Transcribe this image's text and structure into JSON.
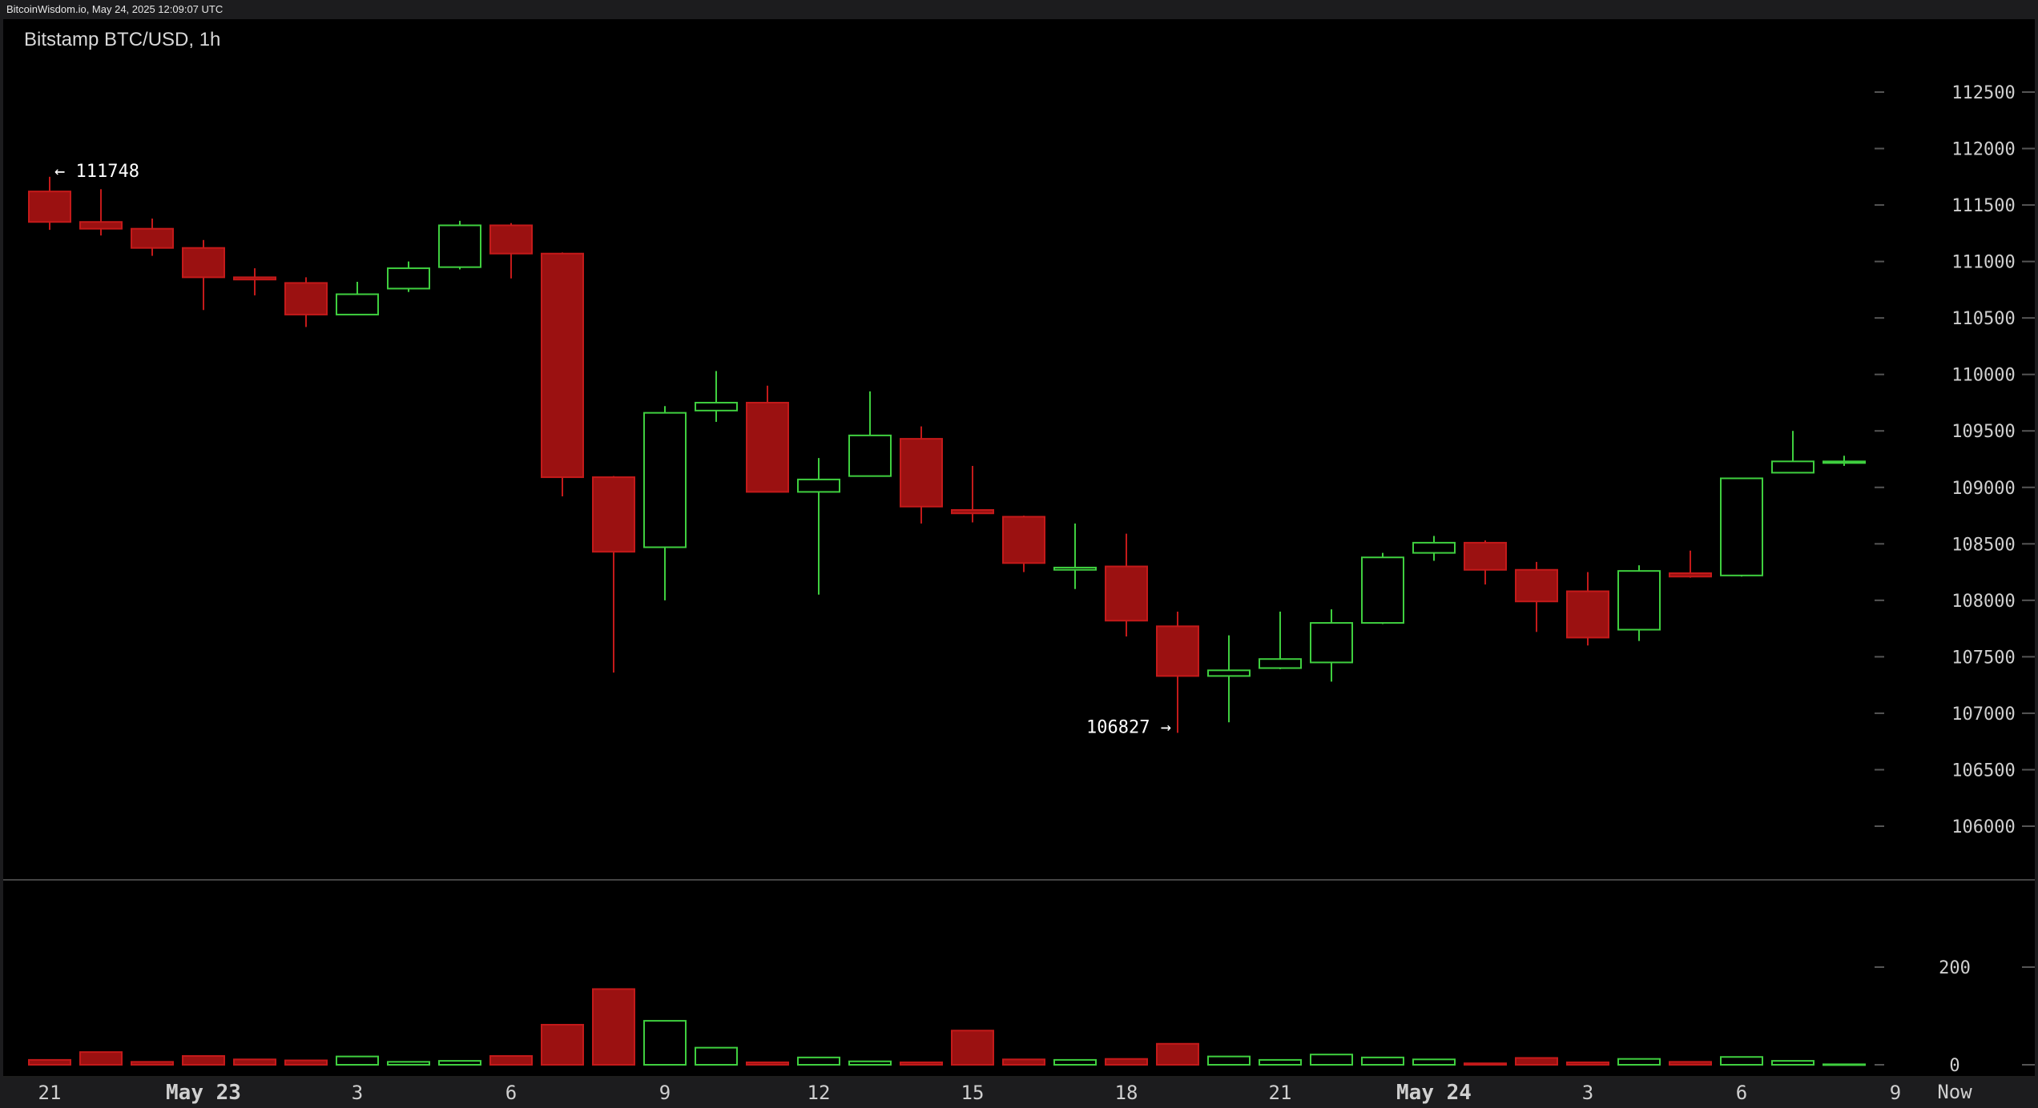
{
  "header": {
    "stamp": "BitcoinWisdom.io, May 24, 2025 12:09:07 UTC",
    "title": "Bitstamp BTC/USD, 1h"
  },
  "colors": {
    "up": "#3fcf3f",
    "down": "#9b1111",
    "down_edge": "#c41a1a",
    "background": "#000000",
    "grid_tick": "#555555",
    "text": "#cfcfcf"
  },
  "chart_data": {
    "type": "candlestick",
    "title": "Bitstamp BTC/USD, 1h",
    "price_axis": {
      "ylim": [
        105500,
        112850
      ],
      "ticks": [
        106000,
        106500,
        107000,
        107500,
        108000,
        108500,
        109000,
        109500,
        110000,
        110500,
        111000,
        111500,
        112000,
        112500
      ],
      "tick_labels": [
        "106000",
        "106500",
        "107000",
        "107500",
        "108000",
        "108500",
        "109000",
        "109500",
        "110000",
        "110500",
        "111000",
        "111500",
        "112000",
        "112500"
      ]
    },
    "volume_axis": {
      "ylim": [
        0,
        360
      ],
      "ticks": [
        0,
        200
      ],
      "tick_labels": [
        "0",
        "200"
      ]
    },
    "x_axis": {
      "labels": [
        {
          "index": 0,
          "text": "21",
          "bold": false
        },
        {
          "index": 3,
          "text": "May 23",
          "bold": true
        },
        {
          "index": 6,
          "text": "3",
          "bold": false
        },
        {
          "index": 9,
          "text": "6",
          "bold": false
        },
        {
          "index": 12,
          "text": "9",
          "bold": false
        },
        {
          "index": 15,
          "text": "12",
          "bold": false
        },
        {
          "index": 18,
          "text": "15",
          "bold": false
        },
        {
          "index": 21,
          "text": "18",
          "bold": false
        },
        {
          "index": 24,
          "text": "21",
          "bold": false
        },
        {
          "index": 27,
          "text": "May 24",
          "bold": true
        },
        {
          "index": 30,
          "text": "3",
          "bold": false
        },
        {
          "index": 33,
          "text": "6",
          "bold": false
        },
        {
          "index": 36,
          "text": "9",
          "bold": false
        }
      ],
      "now_label": "Now"
    },
    "annotations": {
      "high_label": "← 111748",
      "low_label": "106827 →",
      "high_index": 0,
      "high_value": 111748,
      "low_index": 22,
      "low_value": 106827
    },
    "candles": [
      {
        "o": 111620,
        "h": 111750,
        "l": 111280,
        "c": 111350,
        "v": 10
      },
      {
        "o": 111350,
        "h": 111640,
        "l": 111230,
        "c": 111290,
        "v": 26
      },
      {
        "o": 111290,
        "h": 111380,
        "l": 111050,
        "c": 111120,
        "v": 6
      },
      {
        "o": 111120,
        "h": 111190,
        "l": 110570,
        "c": 110860,
        "v": 18
      },
      {
        "o": 110860,
        "h": 110940,
        "l": 110700,
        "c": 110840,
        "v": 11
      },
      {
        "o": 110810,
        "h": 110860,
        "l": 110420,
        "c": 110530,
        "v": 9
      },
      {
        "o": 110530,
        "h": 110820,
        "l": 110530,
        "c": 110710,
        "v": 17
      },
      {
        "o": 110760,
        "h": 111000,
        "l": 110730,
        "c": 110940,
        "v": 6
      },
      {
        "o": 110950,
        "h": 111360,
        "l": 110930,
        "c": 111320,
        "v": 8
      },
      {
        "o": 111320,
        "h": 111340,
        "l": 110850,
        "c": 111070,
        "v": 18
      },
      {
        "o": 111070,
        "h": 111080,
        "l": 108920,
        "c": 109090,
        "v": 82
      },
      {
        "o": 109090,
        "h": 109100,
        "l": 107360,
        "c": 108430,
        "v": 155
      },
      {
        "o": 108470,
        "h": 109720,
        "l": 108000,
        "c": 109660,
        "v": 90
      },
      {
        "o": 109680,
        "h": 110030,
        "l": 109580,
        "c": 109750,
        "v": 35
      },
      {
        "o": 109750,
        "h": 109900,
        "l": 108970,
        "c": 108960,
        "v": 5
      },
      {
        "o": 108960,
        "h": 109260,
        "l": 108050,
        "c": 109070,
        "v": 15
      },
      {
        "o": 109100,
        "h": 109850,
        "l": 109100,
        "c": 109460,
        "v": 7
      },
      {
        "o": 109430,
        "h": 109540,
        "l": 108680,
        "c": 108830,
        "v": 5
      },
      {
        "o": 108800,
        "h": 109190,
        "l": 108690,
        "c": 108770,
        "v": 70
      },
      {
        "o": 108740,
        "h": 108750,
        "l": 108250,
        "c": 108330,
        "v": 11
      },
      {
        "o": 108270,
        "h": 108680,
        "l": 108100,
        "c": 108290,
        "v": 10
      },
      {
        "o": 108300,
        "h": 108590,
        "l": 107680,
        "c": 107820,
        "v": 12
      },
      {
        "o": 107770,
        "h": 107900,
        "l": 106827,
        "c": 107330,
        "v": 43
      },
      {
        "o": 107330,
        "h": 107690,
        "l": 106920,
        "c": 107380,
        "v": 17
      },
      {
        "o": 107400,
        "h": 107900,
        "l": 107390,
        "c": 107480,
        "v": 10
      },
      {
        "o": 107450,
        "h": 107920,
        "l": 107280,
        "c": 107800,
        "v": 21
      },
      {
        "o": 107800,
        "h": 108420,
        "l": 107790,
        "c": 108380,
        "v": 15
      },
      {
        "o": 108420,
        "h": 108570,
        "l": 108350,
        "c": 108510,
        "v": 11
      },
      {
        "o": 108510,
        "h": 108530,
        "l": 108140,
        "c": 108270,
        "v": 3
      },
      {
        "o": 108270,
        "h": 108340,
        "l": 107720,
        "c": 107990,
        "v": 14
      },
      {
        "o": 108080,
        "h": 108250,
        "l": 107600,
        "c": 107670,
        "v": 5
      },
      {
        "o": 107740,
        "h": 108310,
        "l": 107640,
        "c": 108260,
        "v": 12
      },
      {
        "o": 108240,
        "h": 108440,
        "l": 108200,
        "c": 108210,
        "v": 6
      },
      {
        "o": 108220,
        "h": 109080,
        "l": 108210,
        "c": 109080,
        "v": 16
      },
      {
        "o": 109130,
        "h": 109500,
        "l": 109130,
        "c": 109230,
        "v": 8
      },
      {
        "o": 109220,
        "h": 109280,
        "l": 109190,
        "c": 109230,
        "v": 1
      }
    ]
  }
}
